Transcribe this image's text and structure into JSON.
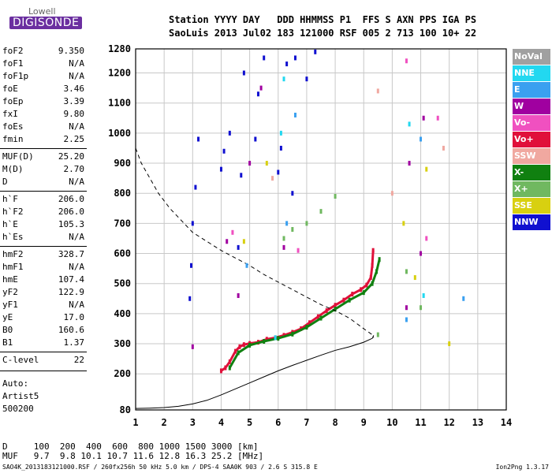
{
  "logo": {
    "line1": "Lowell",
    "line2": "DIGISONDE"
  },
  "header": {
    "line1": "Station YYYY DAY   DDD HHMMSS P1  FFS S AXN PPS IGA PS",
    "line2": "SaoLuis 2013 Jul02 183 121000 RSF 005 2 713 100 10+ 22"
  },
  "params": [
    {
      "key": "foF2",
      "value": "9.350"
    },
    {
      "key": "foF1",
      "value": "N/A"
    },
    {
      "key": "foF1p",
      "value": "N/A"
    },
    {
      "key": "foE",
      "value": "3.46"
    },
    {
      "key": "foEp",
      "value": "3.39"
    },
    {
      "key": "fxI",
      "value": "9.80"
    },
    {
      "key": "foEs",
      "value": "N/A"
    },
    {
      "key": "fmin",
      "value": "2.25"
    },
    {
      "key": "MUF(D)",
      "value": "25.20"
    },
    {
      "key": "M(D)",
      "value": "2.70"
    },
    {
      "key": "D",
      "value": "N/A"
    },
    {
      "key": "h`F",
      "value": "206.0"
    },
    {
      "key": "h`F2",
      "value": "206.0"
    },
    {
      "key": "h`E",
      "value": "105.3"
    },
    {
      "key": "h`Es",
      "value": "N/A"
    },
    {
      "key": "hmF2",
      "value": "328.7"
    },
    {
      "key": "hmF1",
      "value": "N/A"
    },
    {
      "key": "hmE",
      "value": "107.4"
    },
    {
      "key": "yF2",
      "value": "122.9"
    },
    {
      "key": "yF1",
      "value": "N/A"
    },
    {
      "key": "yE",
      "value": "17.0"
    },
    {
      "key": "B0",
      "value": "160.6"
    },
    {
      "key": "B1",
      "value": "1.37"
    },
    {
      "key": "C-level",
      "value": "22"
    }
  ],
  "auto": {
    "line1": "Auto:",
    "line2": "Artist5",
    "line3": "500200"
  },
  "legend": [
    {
      "label": "NoVal",
      "color": "#a0a0a0"
    },
    {
      "label": "NNE",
      "color": "#22d8f0"
    },
    {
      "label": "E",
      "color": "#3aa0f0"
    },
    {
      "label": "W",
      "color": "#a000a0"
    },
    {
      "label": "Vo-",
      "color": "#f050c0"
    },
    {
      "label": "Vo+",
      "color": "#e0103a"
    },
    {
      "label": "SSW",
      "color": "#f0a8a0"
    },
    {
      "label": "X-",
      "color": "#108010"
    },
    {
      "label": "X+",
      "color": "#70b860"
    },
    {
      "label": "SSE",
      "color": "#d8d010"
    },
    {
      "label": "NNW",
      "color": "#1010d0"
    }
  ],
  "d_table": {
    "line1": "D     100  200  400  600  800 1000 1500 3000 [km]",
    "line2": "MUF   9.7  9.8 10.1 10.7 11.6 12.8 16.3 25.2 [MHz]"
  },
  "footer": {
    "left": "SAO4K_2013183121000.RSF / 260fx256h 50 kHz 5.0 km / DPS-4 SAA0K 903 / 2.6 S 315.8 E",
    "right": "Ion2Png 1.3.17"
  },
  "chart_data": {
    "type": "scatter",
    "title": "",
    "xlabel": "",
    "ylabel": "",
    "xlim": [
      1,
      14
    ],
    "ylim": [
      80,
      1280
    ],
    "x_ticks": [
      1,
      2,
      3,
      4,
      5,
      6,
      7,
      8,
      9,
      10,
      11,
      12,
      13,
      14
    ],
    "y_ticks": [
      80,
      200,
      300,
      400,
      500,
      600,
      700,
      800,
      900,
      1000,
      1100,
      1200,
      1280
    ],
    "grid": true,
    "series": [
      {
        "name": "Vo+",
        "color": "#e0103a",
        "x": [
          4.0,
          4.15,
          4.3,
          4.5,
          4.65,
          4.8,
          5.0,
          5.3,
          5.6,
          5.9,
          6.2,
          6.5,
          6.8,
          7.1,
          7.4,
          7.7,
          8.0,
          8.3,
          8.6,
          8.9,
          9.1,
          9.25,
          9.3,
          9.33
        ],
        "y": [
          210,
          220,
          240,
          275,
          290,
          297,
          301,
          305,
          315,
          320,
          328,
          338,
          350,
          370,
          390,
          410,
          428,
          445,
          465,
          480,
          495,
          520,
          560,
          610
        ]
      },
      {
        "name": "X-",
        "color": "#108010",
        "x": [
          4.3,
          4.6,
          5.0,
          5.5,
          6.0,
          6.5,
          7.0,
          7.5,
          8.0,
          8.5,
          9.0,
          9.3,
          9.45,
          9.55
        ],
        "y": [
          220,
          270,
          295,
          308,
          318,
          332,
          355,
          385,
          415,
          445,
          470,
          500,
          540,
          580
        ]
      },
      {
        "name": "true-height",
        "color": "#000000",
        "x": [
          1.0,
          1.5,
          2.0,
          2.5,
          3.0,
          3.5,
          4.0,
          4.5,
          5.0,
          5.5,
          6.0,
          6.5,
          7.0,
          7.5,
          8.0,
          8.5,
          9.0,
          9.3,
          9.35
        ],
        "y": [
          85,
          86,
          88,
          92,
          100,
          112,
          130,
          150,
          170,
          190,
          210,
          228,
          245,
          262,
          278,
          290,
          305,
          318,
          328
        ]
      },
      {
        "name": "model-profile",
        "color": "#000000",
        "dashed": true,
        "x": [
          1.0,
          1.2,
          1.5,
          1.8,
          2.2,
          2.6,
          3.0,
          3.5,
          4.0,
          4.5,
          5.0,
          5.5,
          6.0,
          6.5,
          7.0,
          7.5,
          8.0,
          8.5,
          9.0,
          9.3,
          9.35
        ],
        "y": [
          950,
          900,
          850,
          800,
          750,
          710,
          670,
          640,
          610,
          585,
          560,
          530,
          505,
          480,
          455,
          430,
          410,
          385,
          350,
          330,
          320
        ]
      },
      {
        "name": "NNW",
        "color": "#1010d0",
        "x": [
          2.9,
          2.95,
          3.0,
          3.1,
          3.2,
          4.0,
          4.1,
          4.3,
          4.6,
          4.7,
          4.8,
          5.2,
          5.3,
          5.5,
          6.0,
          6.1,
          6.3,
          6.5,
          6.6,
          7.0,
          7.3
        ],
        "y": [
          450,
          560,
          700,
          820,
          980,
          880,
          940,
          1000,
          620,
          860,
          1200,
          980,
          1130,
          1250,
          870,
          950,
          1230,
          800,
          1250,
          1180,
          1270
        ]
      },
      {
        "name": "W",
        "color": "#a000a0",
        "x": [
          3.0,
          4.2,
          4.6,
          5.0,
          5.4,
          6.2,
          10.5,
          10.6,
          11.0,
          11.1
        ],
        "y": [
          290,
          640,
          460,
          900,
          1150,
          620,
          420,
          900,
          600,
          1050
        ]
      },
      {
        "name": "X+",
        "color": "#70b860",
        "x": [
          6.2,
          6.5,
          7.0,
          7.5,
          8.0,
          9.5,
          10.5,
          11.0
        ],
        "y": [
          650,
          680,
          700,
          740,
          790,
          330,
          540,
          420
        ]
      },
      {
        "name": "SSE",
        "color": "#d8d010",
        "x": [
          4.8,
          5.6,
          10.4,
          10.8,
          11.2,
          12.0
        ],
        "y": [
          640,
          900,
          700,
          520,
          880,
          300
        ]
      },
      {
        "name": "E",
        "color": "#3aa0f0",
        "x": [
          4.9,
          6.3,
          6.6,
          10.5,
          11.0,
          12.5
        ],
        "y": [
          560,
          700,
          1060,
          380,
          980,
          450
        ]
      },
      {
        "name": "NNE",
        "color": "#22d8f0",
        "x": [
          5.9,
          6.1,
          6.2,
          10.6,
          11.1
        ],
        "y": [
          320,
          1000,
          1180,
          1030,
          460
        ]
      },
      {
        "name": "Vo-",
        "color": "#f050c0",
        "x": [
          4.4,
          6.7,
          10.5,
          11.2,
          11.6
        ],
        "y": [
          670,
          610,
          1240,
          650,
          1050
        ]
      },
      {
        "name": "SSW",
        "color": "#f0a8a0",
        "x": [
          5.8,
          9.5,
          10.0,
          11.8
        ],
        "y": [
          850,
          1140,
          800,
          950
        ]
      }
    ]
  }
}
